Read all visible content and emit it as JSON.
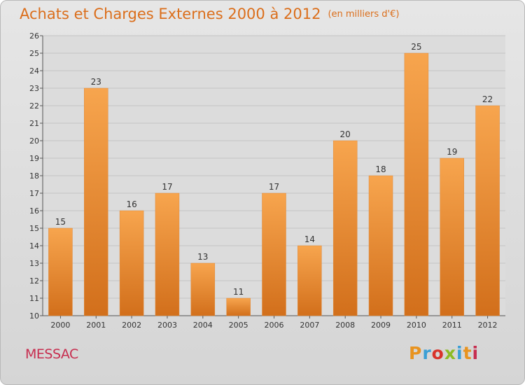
{
  "header": {
    "title": "Achats et Charges Externes 2000 à 2012",
    "unit": "(en milliers d'€)"
  },
  "footer": {
    "place": "MESSAC",
    "brand": "Proxiti",
    "brand_colors": [
      "#e8931f",
      "#3a9fd5",
      "#d8332b",
      "#8dbb24",
      "#3a9fd5",
      "#e8931f",
      "#c72d4f"
    ]
  },
  "colors": {
    "bar_light": "#f7a54e",
    "bar_dark": "#d26f1b",
    "title": "#db6e1b",
    "place": "#c72d4f"
  },
  "chart_data": {
    "type": "bar",
    "categories": [
      "2000",
      "2001",
      "2002",
      "2003",
      "2004",
      "2005",
      "2006",
      "2007",
      "2008",
      "2009",
      "2010",
      "2011",
      "2012"
    ],
    "values": [
      15,
      23,
      16,
      17,
      13,
      11,
      17,
      14,
      20,
      18,
      25,
      19,
      22
    ],
    "ylim": [
      10,
      26
    ],
    "yticks": [
      10,
      11,
      12,
      13,
      14,
      15,
      16,
      17,
      18,
      19,
      20,
      21,
      22,
      23,
      24,
      25,
      26
    ],
    "grid": true,
    "legend": "none"
  }
}
